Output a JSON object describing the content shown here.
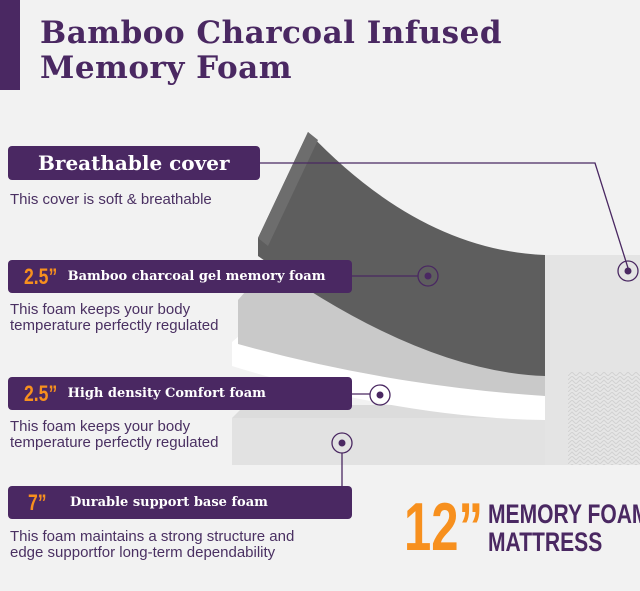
{
  "title": {
    "line1": "Bamboo Charcoal Infused",
    "line2": "Memory Foam"
  },
  "layers": [
    {
      "thickness": "",
      "label": "Breathable cover",
      "description": [
        "This cover is soft & breathable"
      ]
    },
    {
      "thickness": "2.5”",
      "label": "Bamboo charcoal gel  memory foam",
      "description": [
        "This foam keeps your body",
        "temperature perfectly regulated"
      ]
    },
    {
      "thickness": "2.5”",
      "label": "High density Comfort foam",
      "description": [
        "This foam keeps your body",
        "temperature perfectly regulated"
      ]
    },
    {
      "thickness": "7”",
      "label": "Durable support base foam",
      "description": [
        "This foam maintains a strong structure and",
        "edge supportfor long-term dependability"
      ]
    }
  ],
  "badge": {
    "size": "12”",
    "line1": "MEMORY FOAM",
    "line2": "MATTRESS"
  },
  "colors": {
    "purple": "#4a2862",
    "orange": "#f7901e",
    "background": "#f2f2f2"
  }
}
